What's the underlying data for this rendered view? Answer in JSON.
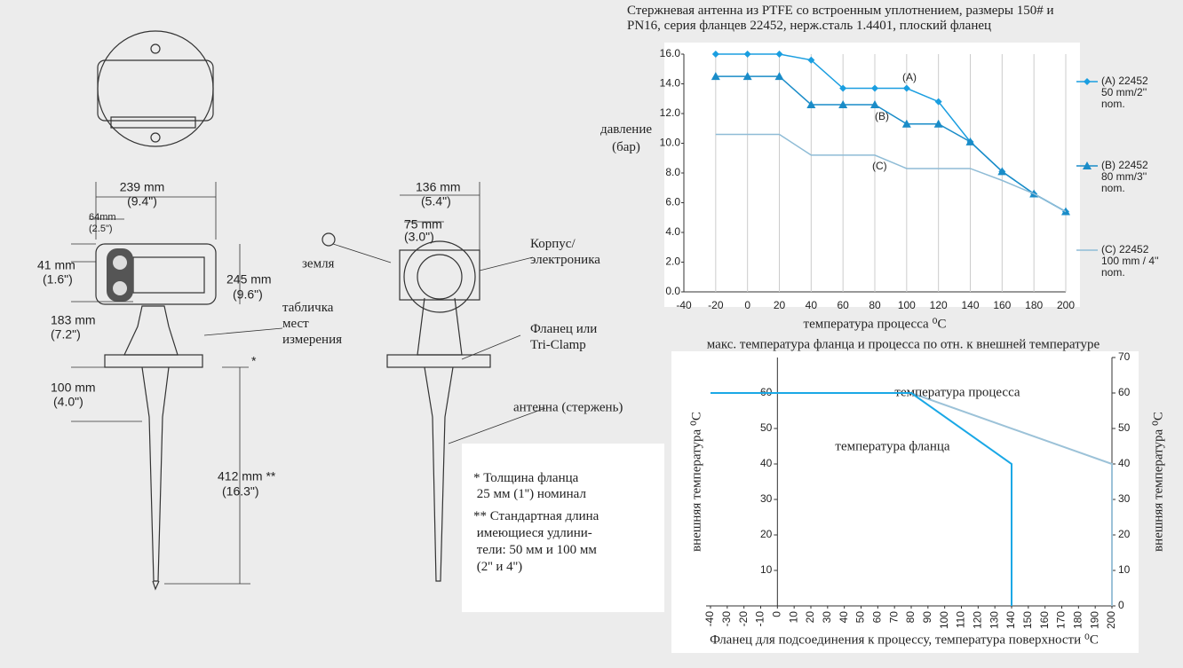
{
  "chart_data": [
    {
      "type": "line",
      "title": "Стержневая антенна из PTFE со встроенным уплотнением, размеры 150# и\nPN16, серия фланцев 22452, нерж.сталь 1.4401, плоский фланец",
      "x_label": "температура процесса ⁰C",
      "y_label": "давление\n(бар)",
      "x": [
        -20,
        0,
        20,
        40,
        60,
        80,
        100,
        120,
        140,
        160,
        180,
        200
      ],
      "series": [
        {
          "name": "(A) 22452\n50 mm/2''\nnom.",
          "color": "#1a9ee0",
          "marker": "diamond",
          "values": [
            16,
            16,
            16,
            15.6,
            13.7,
            13.7,
            13.7,
            12.8,
            10.1,
            8.1,
            6.6,
            5.4
          ]
        },
        {
          "name": "(B) 22452\n80 mm/3''\nnom.",
          "color": "#1a8cc8",
          "marker": "triangle",
          "values": [
            14.5,
            14.5,
            14.5,
            12.6,
            12.6,
            12.6,
            11.3,
            11.3,
            10.1,
            8.1,
            6.6,
            5.4
          ]
        },
        {
          "name": "(C) 22452\n100 mm / 4''\nnom.",
          "color": "#8fbcd6",
          "values": [
            10.6,
            10.6,
            10.6,
            9.2,
            9.2,
            9.2,
            8.3,
            8.3,
            8.3,
            7.5,
            6.6,
            5.4
          ]
        }
      ],
      "annotations": [
        "(A)",
        "(B)",
        "(C)"
      ],
      "xlim": [
        -40,
        200
      ],
      "xticks": [
        -40,
        -20,
        0,
        20,
        40,
        60,
        80,
        100,
        120,
        140,
        160,
        180,
        200
      ],
      "ylim": [
        0,
        16
      ],
      "yticks": [
        {
          "value": 0,
          "label": "0.0"
        },
        {
          "value": 2,
          "label": "2.0"
        },
        {
          "value": 4,
          "label": "4.0"
        },
        {
          "value": 6,
          "label": "6.0"
        },
        {
          "value": 8,
          "label": "8.0"
        },
        {
          "value": 10,
          "label": "10.0"
        },
        {
          "value": 12,
          "label": "12.0"
        },
        {
          "value": 14,
          "label": "14.0"
        },
        {
          "value": 16,
          "label": "16.0"
        }
      ],
      "grid": "x",
      "legend": "right"
    },
    {
      "type": "line",
      "title": "макс. температура фланца и процесса по отн. к внешней температуре",
      "x_label": "Фланец для подсоединения к процессу, температура поверхности ⁰C",
      "y_label": "внешняя температура ⁰C",
      "y2_label": "внешняя температура ⁰C",
      "series": [
        {
          "name": "температура фланца",
          "color": "#1aa8e6",
          "x": [
            -40,
            80,
            140,
            140
          ],
          "values": [
            60,
            60,
            40,
            0
          ]
        },
        {
          "name": "температура процесса",
          "color": "#9cc2d8",
          "x": [
            -40,
            80,
            200,
            200
          ],
          "values": [
            60,
            60,
            40,
            0
          ]
        }
      ],
      "xlim": [
        -40,
        200
      ],
      "xticks": [
        -40,
        -30,
        -20,
        -10,
        0,
        10,
        20,
        30,
        40,
        50,
        60,
        70,
        80,
        90,
        100,
        110,
        120,
        130,
        140,
        150,
        160,
        170,
        180,
        190,
        200
      ],
      "ylim": [
        0,
        70
      ],
      "yticks": [
        10,
        20,
        30,
        40,
        50,
        60
      ],
      "y2lim": [
        0,
        70
      ],
      "y2ticks": [
        0,
        10,
        20,
        30,
        40,
        50,
        60,
        70
      ],
      "grid": false
    }
  ],
  "diagram": {
    "width": "239 mm",
    "width_in": "(9.4\")",
    "offset": "64mm",
    "offset_in": "(2.5\")",
    "head": "41 mm",
    "head_in": "(1.6\")",
    "neck": "183 mm",
    "neck_in": "(7.2\")",
    "flange_drop": "100 mm",
    "flange_drop_in": "(4.0\")",
    "rod": "412 mm **",
    "rod_in": "(16.3\")",
    "height": "245 mm",
    "height_in": "(9.6\")",
    "depth": "136 mm",
    "depth_in": "(5.4\")",
    "depth2": "75 mm",
    "depth2_in": "(3.0\")",
    "star": "*",
    "tag": "табличка\nмест\nизмерения",
    "ground": "земля",
    "housing": "Корпус/\nэлектроника",
    "flange": "Фланец или\nTri-Clamp",
    "antenna": "антенна (стержень)",
    "note1": "* Толщина фланца\n   25 мм (1'') номинал",
    "note2": "** Стандартная длина\n     имеющиеся удлини-\n      тели: 50 мм и 100 мм\n     (2'' и 4'')"
  }
}
